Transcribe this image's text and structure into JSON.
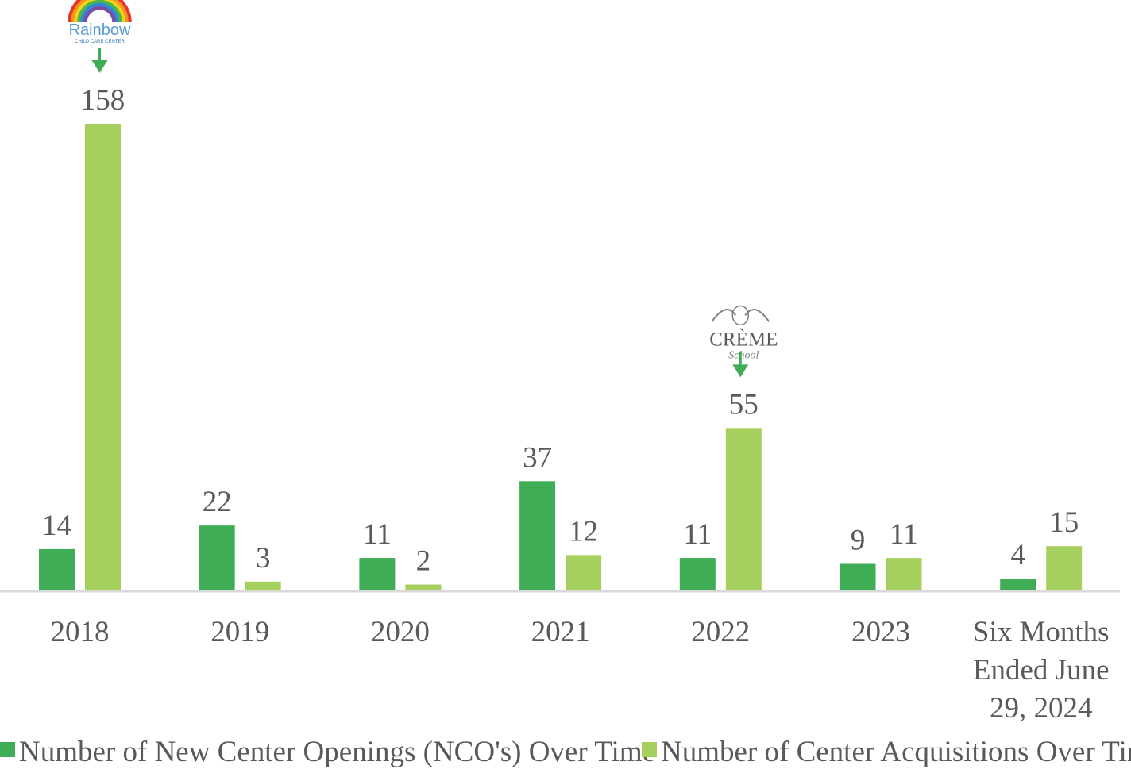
{
  "chart_data": {
    "type": "bar",
    "title": "",
    "xlabel": "",
    "ylabel": "",
    "ylim": [
      0,
      158
    ],
    "grid": false,
    "legend_position": "bottom",
    "categories": [
      [
        "2018"
      ],
      [
        "2019"
      ],
      [
        "2020"
      ],
      [
        "2021"
      ],
      [
        "2022"
      ],
      [
        "2023"
      ],
      [
        "Six Months",
        "Ended June",
        "29, 2024"
      ]
    ],
    "series": [
      {
        "name": "Number of New Center Openings (NCO's) Over Time",
        "color": "#3fad56",
        "values": [
          14,
          22,
          11,
          37,
          11,
          9,
          4
        ]
      },
      {
        "name": "Number of Center Acquisitions Over Time",
        "color": "#a5d05e",
        "values": [
          158,
          3,
          2,
          12,
          55,
          11,
          15
        ]
      }
    ],
    "annotations": [
      {
        "category_index": 0,
        "series_index": 1,
        "logo_name": "rainbow-child-care-center-logo",
        "logo_word": "Rainbow",
        "logo_subtext": "CHILD CARE CENTER"
      },
      {
        "category_index": 4,
        "series_index": 1,
        "logo_name": "creme-school-logo",
        "logo_word": "CRÈME",
        "logo_subtext": "School"
      }
    ],
    "axis_color": "#d9d9d9",
    "arrow_color": "#3fad56"
  }
}
